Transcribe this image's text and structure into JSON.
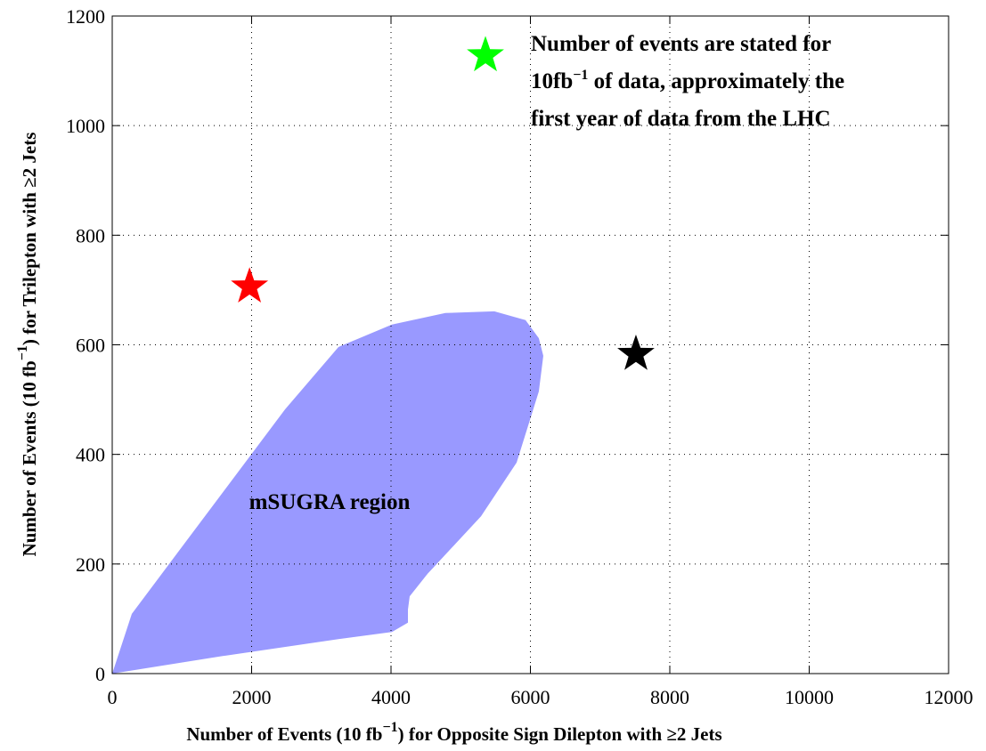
{
  "chart_data": {
    "type": "scatter",
    "xlim": [
      0,
      12000
    ],
    "ylim": [
      0,
      1200
    ],
    "xticks": [
      0,
      2000,
      4000,
      6000,
      8000,
      10000,
      12000
    ],
    "yticks": [
      0,
      200,
      400,
      600,
      800,
      1000,
      1200
    ],
    "grid": true,
    "x_label": [
      "Number of Events (10 fb",
      "−1",
      ") for Opposite Sign Dilepton with  ≥2 Jets"
    ],
    "y_label": [
      "Number of Events (10 fb",
      "−1",
      ") for Trilepton with ≥2 Jets"
    ],
    "points": [
      {
        "x": 1970,
        "y": 706,
        "color": "#ff0000"
      },
      {
        "x": 5355,
        "y": 1128,
        "color": "#00ff00"
      },
      {
        "x": 7514,
        "y": 583,
        "color": "#000000"
      }
    ],
    "region": {
      "label": "mSUGRA region",
      "color": "#9999ff",
      "x": [
        0,
        281,
        946,
        1712,
        2479,
        3246,
        4013,
        4780,
        5482,
        5930,
        6121,
        6185,
        6121,
        5802,
        5291,
        4524,
        4268,
        4243,
        4243,
        4013,
        3246,
        1585
      ],
      "y": [
        0,
        109,
        222,
        352,
        482,
        596,
        637,
        658,
        661,
        645,
        612,
        580,
        515,
        385,
        287,
        182,
        141,
        117,
        93,
        76,
        63,
        32
      ]
    },
    "annotation": [
      [
        "Number of events are stated for"
      ],
      [
        "10fb",
        "−1",
        " of data, approximately the"
      ],
      [
        "first year of data from the LHC"
      ]
    ]
  }
}
